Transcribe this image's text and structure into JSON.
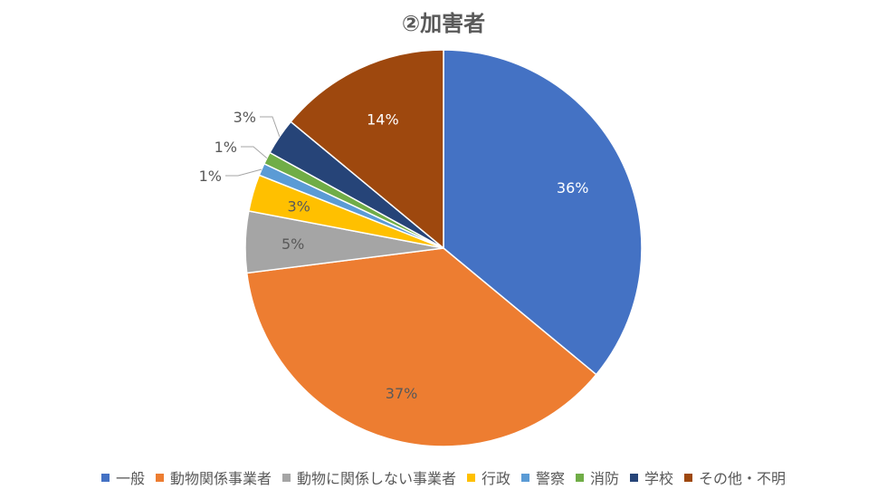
{
  "chart_data": {
    "type": "pie",
    "title": "②加害者",
    "categories": [
      "一般",
      "動物関係事業者",
      "動物に関係しない事業者",
      "行政",
      "警察",
      "消防",
      "学校",
      "その他・不明"
    ],
    "values": [
      36,
      37,
      5,
      3,
      1,
      1,
      3,
      14
    ],
    "data_labels": [
      "36%",
      "37%",
      "5%",
      "3%",
      "1%",
      "1%",
      "3%",
      "14%"
    ],
    "colors": [
      "#4472C4",
      "#ED7D31",
      "#A5A5A5",
      "#FFC000",
      "#5B9BD5",
      "#70AD47",
      "#264478",
      "#9E480E"
    ],
    "legend_position": "bottom",
    "start": "12 o'clock, clockwise"
  }
}
